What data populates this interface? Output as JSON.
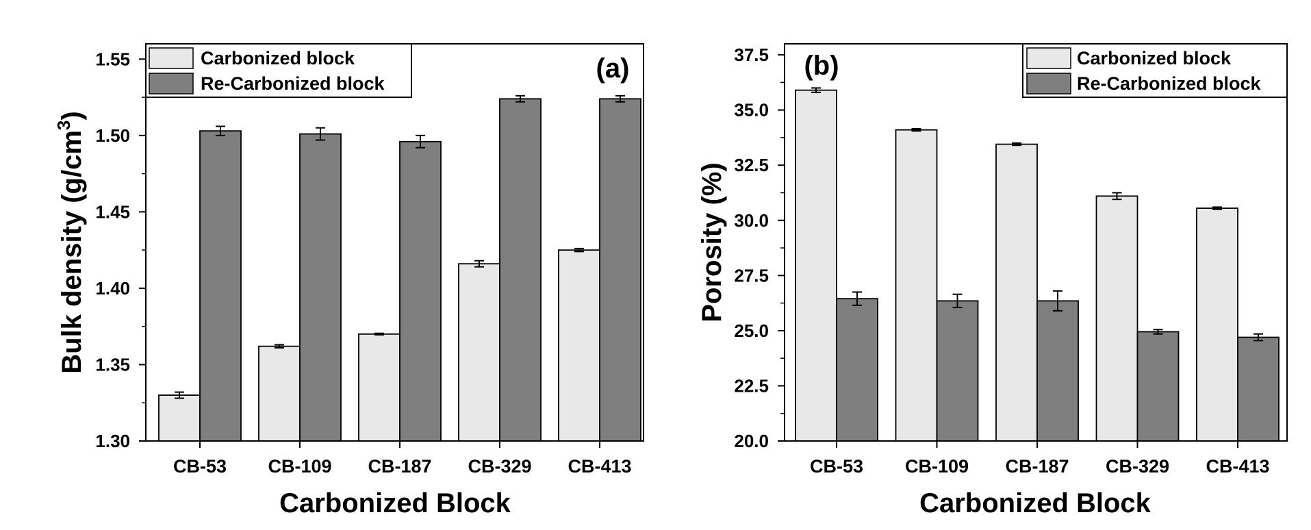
{
  "chart_data": [
    {
      "type": "bar",
      "panel_label": "(a)",
      "xlabel": "Carbonized Block",
      "ylabel": "Bulk density (g/cm",
      "ylabel_sup": "3",
      "ylabel_close": ")",
      "categories": [
        "CB-53",
        "CB-109",
        "CB-187",
        "CB-329",
        "CB-413"
      ],
      "ylim": [
        1.3,
        1.56
      ],
      "yticks": [
        1.3,
        1.35,
        1.4,
        1.45,
        1.5,
        1.55
      ],
      "ytick_labels": [
        "1.30",
        "1.35",
        "1.40",
        "1.45",
        "1.50",
        "1.55"
      ],
      "legend_position": "top-left",
      "series": [
        {
          "name": "Carbonized block",
          "values": [
            1.33,
            1.362,
            1.37,
            1.416,
            1.425
          ],
          "errors": [
            0.002,
            0.001,
            0.0005,
            0.002,
            0.001
          ]
        },
        {
          "name": "Re-Carbonized block",
          "values": [
            1.503,
            1.501,
            1.496,
            1.524,
            1.524
          ],
          "errors": [
            0.003,
            0.004,
            0.004,
            0.002,
            0.002
          ]
        }
      ]
    },
    {
      "type": "bar",
      "panel_label": "(b)",
      "xlabel": "Carbonized Block",
      "ylabel": "Porosity (%)",
      "categories": [
        "CB-53",
        "CB-109",
        "CB-187",
        "CB-329",
        "CB-413"
      ],
      "ylim": [
        20.0,
        38.0
      ],
      "yticks": [
        20.0,
        22.5,
        25.0,
        27.5,
        30.0,
        32.5,
        35.0,
        37.5
      ],
      "ytick_labels": [
        "20.0",
        "22.5",
        "25.0",
        "27.5",
        "30.0",
        "32.5",
        "35.0",
        "37.5"
      ],
      "legend_position": "top-right",
      "series": [
        {
          "name": "Carbonized block",
          "values": [
            35.9,
            34.1,
            33.45,
            31.1,
            30.55
          ],
          "errors": [
            0.1,
            0.05,
            0.05,
            0.15,
            0.05
          ]
        },
        {
          "name": "Re-Carbonized block",
          "values": [
            26.45,
            26.35,
            26.35,
            24.95,
            24.7
          ],
          "errors": [
            0.3,
            0.3,
            0.45,
            0.1,
            0.15
          ]
        }
      ]
    }
  ],
  "colors": {
    "carbonized": "#e8e8e8",
    "recarbonized": "#7f7f7f",
    "axis": "#000000"
  }
}
